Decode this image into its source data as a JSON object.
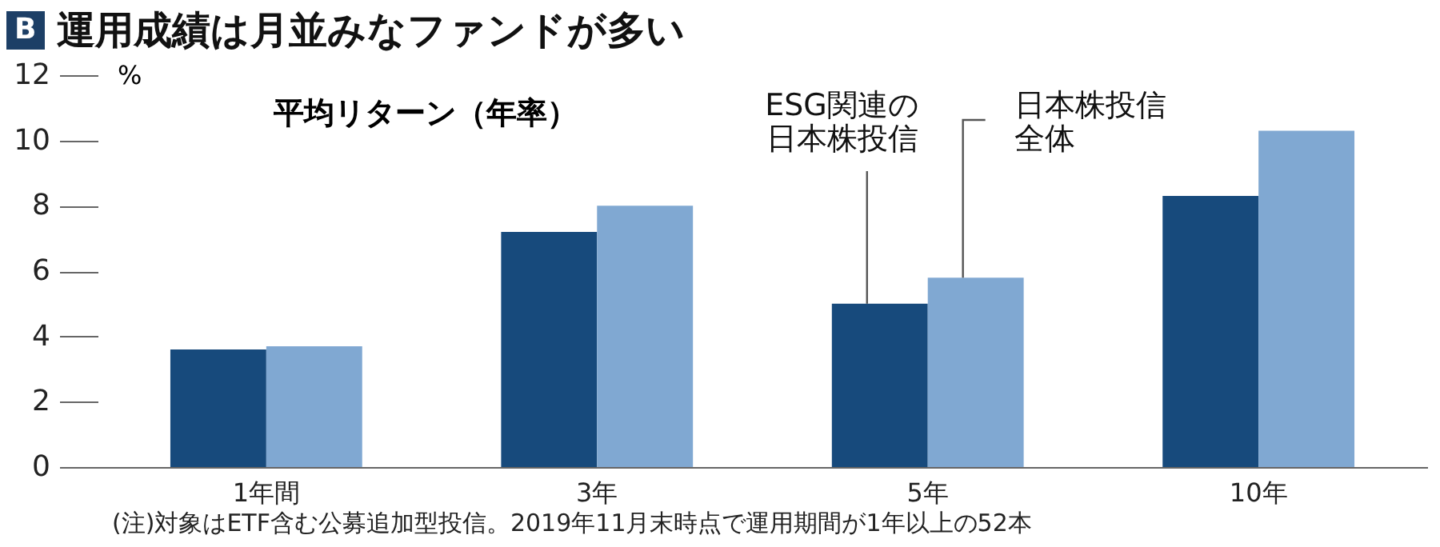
{
  "chart_data": {
    "type": "bar",
    "title": "運用成績は月並みなファンドが多い",
    "subtitle": "平均リターン（年率）",
    "ylabel": "%",
    "categories": [
      "1年間",
      "3年",
      "5年",
      "10年"
    ],
    "series": [
      {
        "name": "ESG関連の日本株投信",
        "color": "#174a7c",
        "values": [
          3.6,
          7.2,
          5.0,
          8.3
        ]
      },
      {
        "name": "日本株投信全体",
        "color": "#80a8d2",
        "values": [
          3.7,
          8.0,
          5.8,
          10.3
        ]
      }
    ],
    "ylim": [
      0,
      12
    ],
    "yticks": [
      0,
      2,
      4,
      6,
      8,
      10,
      12
    ],
    "grid": false,
    "legend": false,
    "annotations": [
      "B",
      "(注)対象はETF含む公募追加型投信。2019年11月末時点で運用期間が1年以上の52本"
    ]
  }
}
